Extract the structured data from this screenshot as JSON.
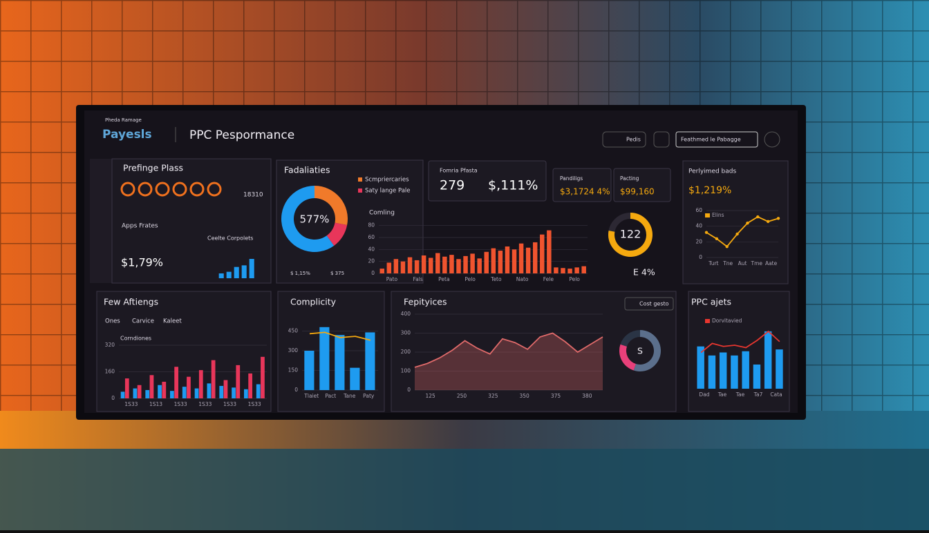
{
  "header": {
    "brand_small": "Pheda Ramage",
    "brand": "Payesls",
    "title": "PPC Pespormance",
    "button": "Pedis",
    "search": "Feathmed le Pabagge"
  },
  "prefinge": {
    "title": "Prefinge Plass",
    "stat": "18310",
    "subtitle": "Apps Frates",
    "side": "Ceelte Corpolets",
    "figure": "$1,79%",
    "chart": {
      "type": "bar",
      "values": [
        3,
        4,
        7,
        8,
        12
      ],
      "ylim": [
        0,
        12
      ],
      "color": "#1e9bf0"
    }
  },
  "fadaliaties": {
    "title": "Fadaliaties",
    "center": "577%",
    "chart": {
      "type": "donut",
      "categories": [
        "Scmpriercaries",
        "Saty lange Pale",
        null
      ],
      "values": [
        28,
        12,
        60
      ],
      "colors": [
        "#f07a2a",
        "#e8365a",
        "#1e9bf0"
      ]
    },
    "footer": [
      "$ 1,15%",
      "$ 375"
    ]
  },
  "kpi": {
    "label": "Fomria Pfasta",
    "value": "279",
    "change": "$,111%"
  },
  "cards": [
    {
      "label": "Pandiligs",
      "value": "$3,1724 4%"
    },
    {
      "label": "Pacting",
      "value": "$99,160"
    }
  ],
  "comling": {
    "title": "Comling",
    "chart": {
      "type": "bar",
      "values": [
        8,
        18,
        24,
        20,
        27,
        22,
        30,
        26,
        34,
        28,
        31,
        24,
        29,
        33,
        25,
        36,
        42,
        38,
        45,
        40,
        50,
        43,
        52,
        65,
        72,
        10,
        9,
        8,
        10,
        12
      ],
      "ylim": [
        0,
        90
      ],
      "yticks": [
        0,
        20,
        40,
        60,
        80
      ],
      "color": "#f0542f",
      "x_labels": [
        "Pato",
        "Fals",
        "Peta",
        "Pelo",
        "Teto",
        "Nato",
        "Fele",
        "Pelo"
      ]
    }
  },
  "gauge": {
    "value_text": "122",
    "change": "E 4%",
    "chart": {
      "type": "gauge",
      "value": 78,
      "ylim": [
        0,
        100
      ],
      "color": "#f5a90f"
    }
  },
  "perlyimed": {
    "title": "Perlyimed bads",
    "figure": "$1,219%",
    "chart": {
      "type": "line",
      "series": [
        {
          "name": "Elins",
          "color": "#f5a90f",
          "values": [
            32,
            24,
            14,
            30,
            44,
            52,
            46,
            50
          ]
        }
      ],
      "ylim": [
        0,
        60
      ],
      "yticks": [
        0,
        20,
        40,
        60
      ],
      "x_labels": [
        "Turt",
        "Tne",
        "Aut",
        "Tme",
        "Aate"
      ]
    }
  },
  "aftiengs": {
    "title": "Few Aftiengs",
    "tabs": [
      "Ones",
      "Carvice",
      "Kaleet"
    ],
    "subtitle": "Corndiones",
    "chart": {
      "type": "bar",
      "series": [
        {
          "color": "#1e9bf0",
          "values": [
            40,
            60,
            50,
            80,
            45,
            70,
            60,
            90,
            75,
            65,
            55,
            85
          ]
        },
        {
          "color": "#e8365a",
          "values": [
            120,
            80,
            140,
            100,
            190,
            130,
            170,
            230,
            110,
            200,
            150,
            250
          ]
        }
      ],
      "ylim": [
        0,
        320
      ],
      "yticks": [
        0,
        160,
        320
      ],
      "x_labels": [
        "1S33",
        "1S13",
        "1S33",
        "1S33",
        "1S33",
        "1S33"
      ]
    }
  },
  "complicity": {
    "title": "Complicity",
    "chart": {
      "type": "bar",
      "series": [
        {
          "color": "#1e9bf0",
          "values": [
            300,
            480,
            420,
            170,
            440
          ]
        },
        {
          "type": "line",
          "color": "#f5a90f",
          "values": [
            430,
            440,
            400,
            410,
            380
          ]
        }
      ],
      "ylim": [
        0,
        500
      ],
      "yticks": [
        0,
        150,
        300,
        450
      ],
      "x_labels": [
        "Tlaiet",
        "Pact",
        "Tane",
        "Paty"
      ]
    }
  },
  "fepityices": {
    "title": "Fepityices",
    "button": "Cost gesto",
    "chart": {
      "type": "area",
      "series": [
        {
          "color": "#e06a6a",
          "values": [
            120,
            140,
            170,
            210,
            260,
            220,
            190,
            270,
            250,
            215,
            280,
            300,
            255,
            200,
            240,
            280
          ]
        }
      ],
      "ylim": [
        0,
        400
      ],
      "yticks": [
        0,
        100,
        200,
        300,
        400
      ],
      "x_labels": [
        "125",
        "250",
        "325",
        "350",
        "375",
        "380"
      ]
    }
  },
  "ring": {
    "center": "S",
    "chart": {
      "type": "donut",
      "values": [
        55,
        25,
        20
      ],
      "colors": [
        "#5b6f8c",
        "#e8407a",
        "#2a3445"
      ]
    }
  },
  "ppc": {
    "title": "PPC ajets",
    "chart": {
      "type": "bar",
      "series": [
        {
          "color": "#1e9bf0",
          "values": [
            70,
            55,
            60,
            55,
            62,
            40,
            95,
            65
          ]
        },
        {
          "type": "line",
          "name": "Dorvitavied",
          "color": "#e8362f",
          "values": [
            60,
            75,
            70,
            72,
            68,
            80,
            95,
            78
          ]
        }
      ],
      "ylim": [
        0,
        120
      ],
      "x_labels": [
        "Dad",
        "Tae",
        "Tae",
        "Ta7",
        "Cata"
      ]
    }
  }
}
